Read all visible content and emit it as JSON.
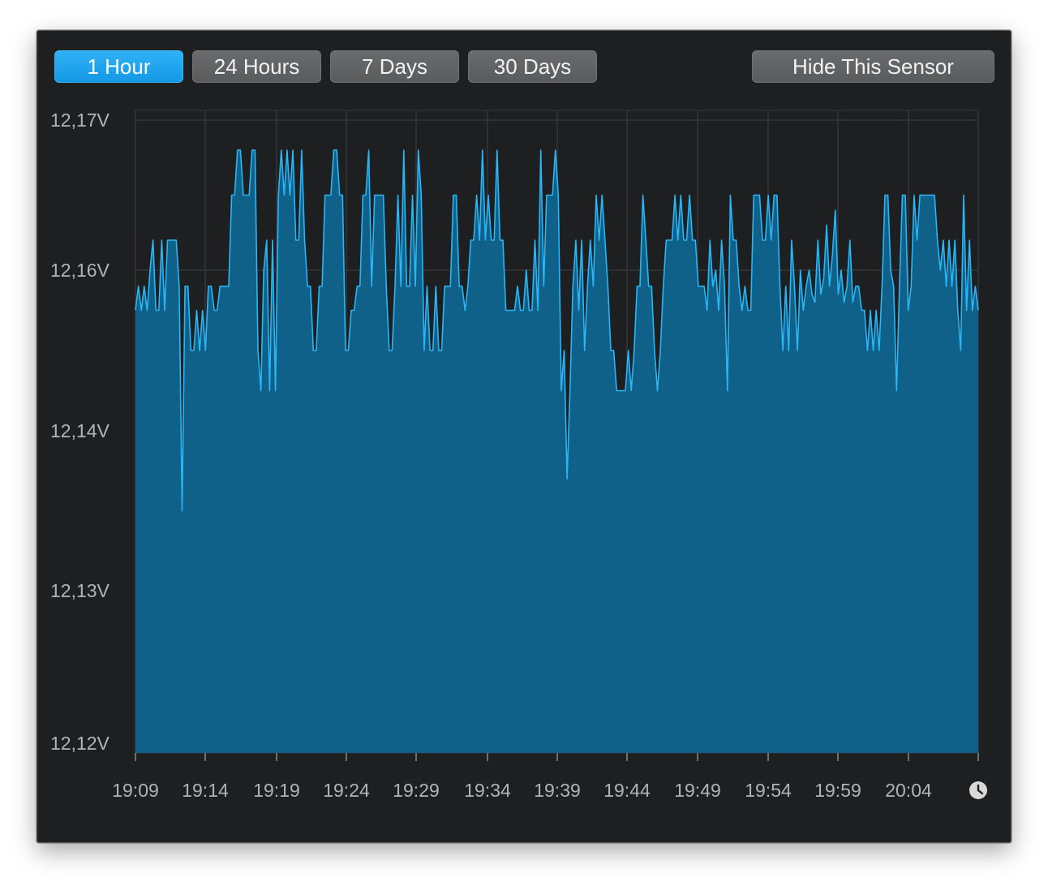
{
  "toolbar": {
    "buttons": [
      {
        "label": "1 Hour",
        "active": true
      },
      {
        "label": "24 Hours",
        "active": false
      },
      {
        "label": "7 Days",
        "active": false
      },
      {
        "label": "30 Days",
        "active": false
      }
    ],
    "hide_label": "Hide This Sensor"
  },
  "colors": {
    "accent": "#1ea3f0",
    "line": "#2bb5f5",
    "fill": "#0f618a",
    "grid": "#34363a",
    "window_bg": "#1e1f21"
  },
  "icons": {
    "time": "clock-icon"
  },
  "chart_data": {
    "type": "area",
    "title": "",
    "xlabel": "",
    "ylabel": "",
    "y_unit": "V",
    "y_ticks": [
      "12,17V",
      "12,16V",
      "12,14V",
      "12,13V",
      "12,12V"
    ],
    "y_tick_values": [
      12.17,
      12.16,
      12.14,
      12.13,
      12.12
    ],
    "x_ticks": [
      "19:09",
      "19:14",
      "19:19",
      "19:24",
      "19:29",
      "19:34",
      "19:39",
      "19:44",
      "19:49",
      "19:54",
      "19:59",
      "20:04"
    ],
    "ylim": [
      12.12,
      12.17
    ],
    "xlim": [
      "19:09",
      "20:09"
    ],
    "grid": true,
    "series": [
      {
        "values": [
          12.155,
          12.158,
          12.155,
          12.158,
          12.155,
          12.16,
          12.162,
          12.155,
          12.155,
          12.162,
          12.155,
          12.162,
          12.162,
          12.162,
          12.162,
          12.158,
          12.135,
          12.158,
          12.158,
          12.15,
          12.15,
          12.155,
          12.15,
          12.155,
          12.15,
          12.158,
          12.158,
          12.155,
          12.155,
          12.158,
          12.158,
          12.158,
          12.158,
          12.165,
          12.165,
          12.168,
          12.168,
          12.165,
          12.165,
          12.165,
          12.168,
          12.168,
          12.15,
          12.145,
          12.16,
          12.162,
          12.145,
          12.162,
          12.145,
          12.165,
          12.168,
          12.165,
          12.168,
          12.165,
          12.168,
          12.162,
          12.162,
          12.168,
          12.162,
          12.158,
          12.158,
          12.15,
          12.15,
          12.158,
          12.158,
          12.165,
          12.165,
          12.165,
          12.168,
          12.168,
          12.165,
          12.165,
          12.15,
          12.15,
          12.155,
          12.155,
          12.158,
          12.158,
          12.165,
          12.165,
          12.168,
          12.158,
          12.165,
          12.165,
          12.165,
          12.165,
          12.158,
          12.15,
          12.15,
          12.158,
          12.165,
          12.158,
          12.168,
          12.158,
          12.158,
          12.165,
          12.158,
          12.168,
          12.165,
          12.15,
          12.158,
          12.15,
          12.15,
          12.158,
          12.15,
          12.15,
          12.158,
          12.158,
          12.158,
          12.165,
          12.165,
          12.158,
          12.158,
          12.155,
          12.158,
          12.162,
          12.162,
          12.165,
          12.162,
          12.168,
          12.162,
          12.165,
          12.162,
          12.162,
          12.168,
          12.162,
          12.162,
          12.155,
          12.155,
          12.155,
          12.155,
          12.158,
          12.155,
          12.155,
          12.16,
          12.155,
          12.155,
          12.162,
          12.155,
          12.168,
          12.158,
          12.165,
          12.165,
          12.165,
          12.168,
          12.165,
          12.145,
          12.15,
          12.137,
          12.145,
          12.158,
          12.162,
          12.155,
          12.162,
          12.15,
          12.158,
          12.162,
          12.158,
          12.165,
          12.162,
          12.165,
          12.162,
          12.158,
          12.15,
          12.15,
          12.145,
          12.145,
          12.145,
          12.145,
          12.15,
          12.145,
          12.15,
          12.158,
          12.158,
          12.165,
          12.162,
          12.158,
          12.158,
          12.15,
          12.145,
          12.15,
          12.158,
          12.162,
          12.162,
          12.162,
          12.165,
          12.162,
          12.165,
          12.162,
          12.162,
          12.165,
          12.162,
          12.162,
          12.158,
          12.158,
          12.158,
          12.155,
          12.162,
          12.158,
          12.16,
          12.155,
          12.162,
          12.158,
          12.145,
          12.165,
          12.162,
          12.162,
          12.158,
          12.155,
          12.158,
          12.155,
          12.155,
          12.165,
          12.165,
          12.165,
          12.162,
          12.162,
          12.165,
          12.162,
          12.165,
          12.165,
          12.158,
          12.15,
          12.158,
          12.15,
          12.162,
          12.158,
          12.15,
          12.16,
          12.155,
          12.158,
          12.16,
          12.157,
          12.156,
          12.162,
          12.157,
          12.159,
          12.163,
          12.158,
          12.161,
          12.164,
          12.157,
          12.16,
          12.156,
          12.158,
          12.162,
          12.156,
          12.158,
          12.158,
          12.155,
          12.155,
          12.15,
          12.155,
          12.15,
          12.155,
          12.15,
          12.158,
          12.165,
          12.165,
          12.16,
          12.158,
          12.145,
          12.158,
          12.165,
          12.165,
          12.155,
          12.158,
          12.165,
          12.162,
          12.165,
          12.165,
          12.165,
          12.165,
          12.165,
          12.165,
          12.162,
          12.16,
          12.162,
          12.158,
          12.162,
          12.158,
          12.162,
          12.155,
          12.15,
          12.165,
          12.155,
          12.162,
          12.155,
          12.158,
          12.155
        ]
      }
    ]
  }
}
